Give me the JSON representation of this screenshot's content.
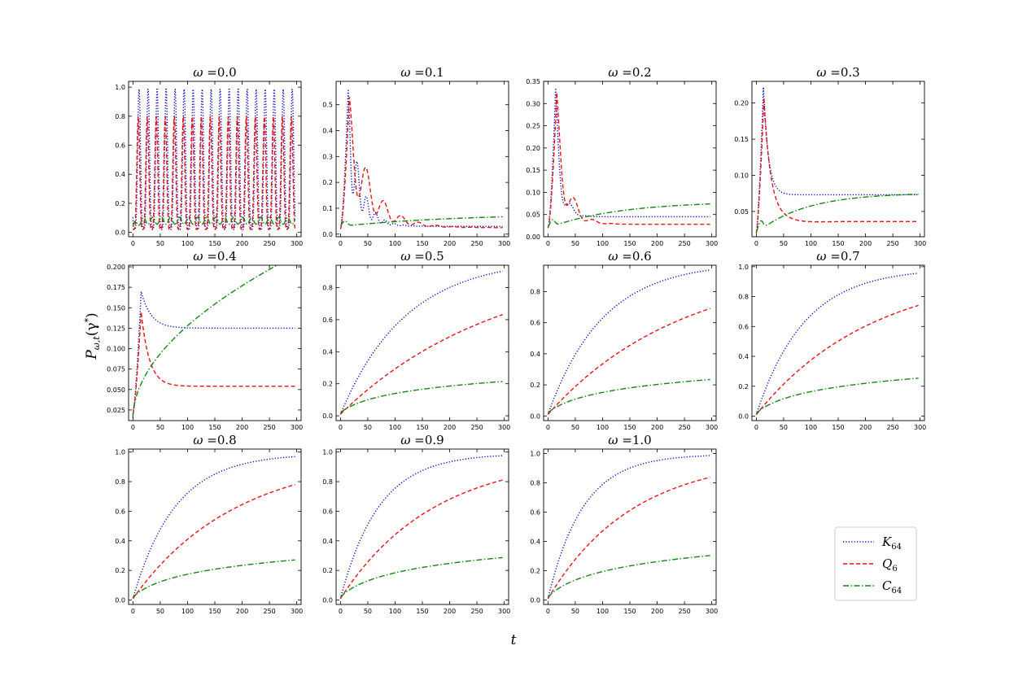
{
  "figure": {
    "ylabel": "P_{ω,t}(γ*)",
    "xlabel": "t",
    "title_prefix": "ω ="
  },
  "colors": {
    "K64": "#0000cc",
    "Q6": "#ee1111",
    "C64": "#118811"
  },
  "legend": {
    "placement": "lower-right",
    "entries": [
      {
        "key": "K64",
        "base": "K",
        "sub": "64",
        "style": "dotted"
      },
      {
        "key": "Q6",
        "base": "Q",
        "sub": "6",
        "style": "dashed"
      },
      {
        "key": "C64",
        "base": "C",
        "sub": "64",
        "style": "dashdot"
      }
    ]
  },
  "chart_data": [
    {
      "type": "line",
      "omega": "0.0",
      "xlim": [
        -8,
        308
      ],
      "ylim": [
        -0.03,
        1.04
      ],
      "xticks": [
        0,
        50,
        100,
        150,
        200,
        250,
        300
      ],
      "yticks": [
        0.0,
        0.2,
        0.4,
        0.6,
        0.8,
        1.0
      ],
      "ytick_labels": [
        "0.0",
        "0.2",
        "0.4",
        "0.6",
        "0.8",
        "1.0"
      ],
      "series": {
        "K64": {
          "kind": "osc",
          "period": 16.5,
          "amp": 0.99,
          "floor": 0.02
        },
        "Q6": {
          "kind": "osc",
          "period": 16.5,
          "amp": 0.8,
          "floor": 0.02,
          "phase": 1.5
        },
        "C64": {
          "kind": "wobble",
          "base": 0.08,
          "amp": 0.03,
          "period": 16.5
        }
      }
    },
    {
      "type": "line",
      "omega": "0.1",
      "xlim": [
        -8,
        308
      ],
      "ylim": [
        -0.01,
        0.59
      ],
      "xticks": [
        0,
        50,
        100,
        150,
        200,
        250,
        300
      ],
      "yticks": [
        0.0,
        0.1,
        0.2,
        0.3,
        0.4,
        0.5
      ],
      "ytick_labels": [
        "0.0",
        "0.1",
        "0.2",
        "0.3",
        "0.4",
        "0.5"
      ],
      "series": {
        "K64": {
          "kind": "damped",
          "peak": 0.56,
          "t_peak": 14,
          "final": 0.03,
          "period": 17,
          "tau": 22
        },
        "Q6": {
          "kind": "damped",
          "peak": 0.53,
          "t_peak": 16,
          "final": 0.025,
          "period": 32,
          "tau": 40
        },
        "C64": {
          "kind": "rise",
          "start": 0.03,
          "final": 0.08,
          "tau": 220,
          "bump": 0.02
        }
      }
    },
    {
      "type": "line",
      "omega": "0.2",
      "xlim": [
        -8,
        308
      ],
      "ylim": [
        0.0,
        0.35
      ],
      "xticks": [
        0,
        50,
        100,
        150,
        200,
        250,
        300
      ],
      "yticks": [
        0.0,
        0.05,
        0.1,
        0.15,
        0.2,
        0.25,
        0.3,
        0.35
      ],
      "ytick_labels": [
        "0.00",
        "0.05",
        "0.10",
        "0.15",
        "0.20",
        "0.25",
        "0.30",
        "0.35"
      ],
      "series": {
        "K64": {
          "kind": "damped",
          "peak": 0.335,
          "t_peak": 14,
          "final": 0.045,
          "period": 30,
          "tau": 12
        },
        "Q6": {
          "kind": "damped",
          "peak": 0.325,
          "t_peak": 16,
          "final": 0.028,
          "period": 34,
          "tau": 20
        },
        "C64": {
          "kind": "rise",
          "start": 0.02,
          "final": 0.08,
          "tau": 130,
          "bump": 0.015
        }
      }
    },
    {
      "type": "line",
      "omega": "0.3",
      "xlim": [
        -8,
        308
      ],
      "ylim": [
        0.015,
        0.23
      ],
      "xticks": [
        0,
        50,
        100,
        150,
        200,
        250,
        300
      ],
      "yticks": [
        0.05,
        0.1,
        0.15,
        0.2
      ],
      "ytick_labels": [
        "0.05",
        "0.10",
        "0.15",
        "0.20"
      ],
      "series": {
        "K64": {
          "kind": "pulse",
          "peak": 0.222,
          "t_peak": 13,
          "final": 0.073,
          "tau": 9
        },
        "Q6": {
          "kind": "pulse",
          "peak": 0.207,
          "t_peak": 14,
          "final": 0.036,
          "tau": 12,
          "dip": 0.012
        },
        "C64": {
          "kind": "rise",
          "start": 0.02,
          "final": 0.076,
          "tau": 90,
          "bump": 0.012
        }
      }
    },
    {
      "type": "line",
      "omega": "0.4",
      "xlim": [
        -8,
        308
      ],
      "ylim": [
        0.012,
        0.202
      ],
      "xticks": [
        0,
        50,
        100,
        150,
        200,
        250,
        300
      ],
      "yticks": [
        0.025,
        0.05,
        0.075,
        0.1,
        0.125,
        0.15,
        0.175,
        0.2
      ],
      "ytick_labels": [
        "0.025",
        "0.050",
        "0.075",
        "0.100",
        "0.125",
        "0.150",
        "0.175",
        "0.200"
      ],
      "series": {
        "K64": {
          "kind": "pulse",
          "peak": 0.17,
          "t_peak": 15,
          "final": 0.125,
          "tau": 18
        },
        "Q6": {
          "kind": "pulse",
          "peak": 0.145,
          "t_peak": 15,
          "final": 0.054,
          "tau": 15
        },
        "C64": {
          "kind": "sqrtrise",
          "start": 0.015,
          "scale": 0.0103,
          "power": 0.52
        }
      }
    },
    {
      "type": "line",
      "omega": "0.5",
      "xlim": [
        -8,
        308
      ],
      "ylim": [
        -0.03,
        0.94
      ],
      "xticks": [
        0,
        50,
        100,
        150,
        200,
        250,
        300
      ],
      "yticks": [
        0.0,
        0.2,
        0.4,
        0.6,
        0.8
      ],
      "ytick_labels": [
        "0.0",
        "0.2",
        "0.4",
        "0.6",
        "0.8"
      ],
      "series": {
        "K64": {
          "kind": "sat",
          "start": 0.01,
          "final": 0.985,
          "tau": 120
        },
        "Q6": {
          "kind": "sat",
          "start": 0.01,
          "final": 0.98,
          "tau": 290
        },
        "C64": {
          "kind": "log",
          "start": 0.02,
          "final": 0.215
        }
      }
    },
    {
      "type": "line",
      "omega": "0.6",
      "xlim": [
        -8,
        308
      ],
      "ylim": [
        -0.03,
        0.97
      ],
      "xticks": [
        0,
        50,
        100,
        150,
        200,
        250,
        300
      ],
      "yticks": [
        0.0,
        0.2,
        0.4,
        0.6,
        0.8
      ],
      "ytick_labels": [
        "0.0",
        "0.2",
        "0.4",
        "0.6",
        "0.8"
      ],
      "series": {
        "K64": {
          "kind": "sat",
          "start": 0.01,
          "final": 0.99,
          "tau": 100
        },
        "Q6": {
          "kind": "sat",
          "start": 0.01,
          "final": 0.98,
          "tau": 245
        },
        "C64": {
          "kind": "log",
          "start": 0.02,
          "final": 0.235
        }
      }
    },
    {
      "type": "line",
      "omega": "0.7",
      "xlim": [
        -8,
        308
      ],
      "ylim": [
        -0.03,
        1.01
      ],
      "xticks": [
        0,
        50,
        100,
        150,
        200,
        250,
        300
      ],
      "yticks": [
        0.0,
        0.2,
        0.4,
        0.6,
        0.8,
        1.0
      ],
      "ytick_labels": [
        "0.0",
        "0.2",
        "0.4",
        "0.6",
        "0.8",
        "1.0"
      ],
      "series": {
        "K64": {
          "kind": "sat",
          "start": 0.01,
          "final": 0.99,
          "tau": 88
        },
        "Q6": {
          "kind": "sat",
          "start": 0.01,
          "final": 0.98,
          "tau": 212
        },
        "C64": {
          "kind": "log",
          "start": 0.02,
          "final": 0.255
        }
      }
    },
    {
      "type": "line",
      "omega": "0.8",
      "xlim": [
        -8,
        308
      ],
      "ylim": [
        -0.03,
        1.02
      ],
      "xticks": [
        0,
        50,
        100,
        150,
        200,
        250,
        300
      ],
      "yticks": [
        0.0,
        0.2,
        0.4,
        0.6,
        0.8,
        1.0
      ],
      "ytick_labels": [
        "0.0",
        "0.2",
        "0.4",
        "0.6",
        "0.8",
        "1.0"
      ],
      "series": {
        "K64": {
          "kind": "sat",
          "start": 0.01,
          "final": 0.99,
          "tau": 77
        },
        "Q6": {
          "kind": "sat",
          "start": 0.01,
          "final": 0.98,
          "tau": 188
        },
        "C64": {
          "kind": "log",
          "start": 0.02,
          "final": 0.272
        }
      }
    },
    {
      "type": "line",
      "omega": "0.9",
      "xlim": [
        -8,
        308
      ],
      "ylim": [
        -0.03,
        1.02
      ],
      "xticks": [
        0,
        50,
        100,
        150,
        200,
        250,
        300
      ],
      "yticks": [
        0.0,
        0.2,
        0.4,
        0.6,
        0.8,
        1.0
      ],
      "ytick_labels": [
        "0.0",
        "0.2",
        "0.4",
        "0.6",
        "0.8",
        "1.0"
      ],
      "series": {
        "K64": {
          "kind": "sat",
          "start": 0.01,
          "final": 0.99,
          "tau": 70
        },
        "Q6": {
          "kind": "sat",
          "start": 0.01,
          "final": 0.98,
          "tau": 170
        },
        "C64": {
          "kind": "log",
          "start": 0.02,
          "final": 0.288
        }
      }
    },
    {
      "type": "line",
      "omega": "1.0",
      "xlim": [
        -8,
        308
      ],
      "ylim": [
        -0.03,
        1.03
      ],
      "xticks": [
        0,
        50,
        100,
        150,
        200,
        250,
        300
      ],
      "yticks": [
        0.0,
        0.2,
        0.4,
        0.6,
        0.8,
        1.0
      ],
      "ytick_labels": [
        "0.0",
        "0.2",
        "0.4",
        "0.6",
        "0.8",
        "1.0"
      ],
      "series": {
        "K64": {
          "kind": "sat",
          "start": 0.01,
          "final": 0.995,
          "tau": 64
        },
        "Q6": {
          "kind": "sat",
          "start": 0.01,
          "final": 0.98,
          "tau": 155
        },
        "C64": {
          "kind": "log",
          "start": 0.02,
          "final": 0.305
        }
      }
    }
  ]
}
